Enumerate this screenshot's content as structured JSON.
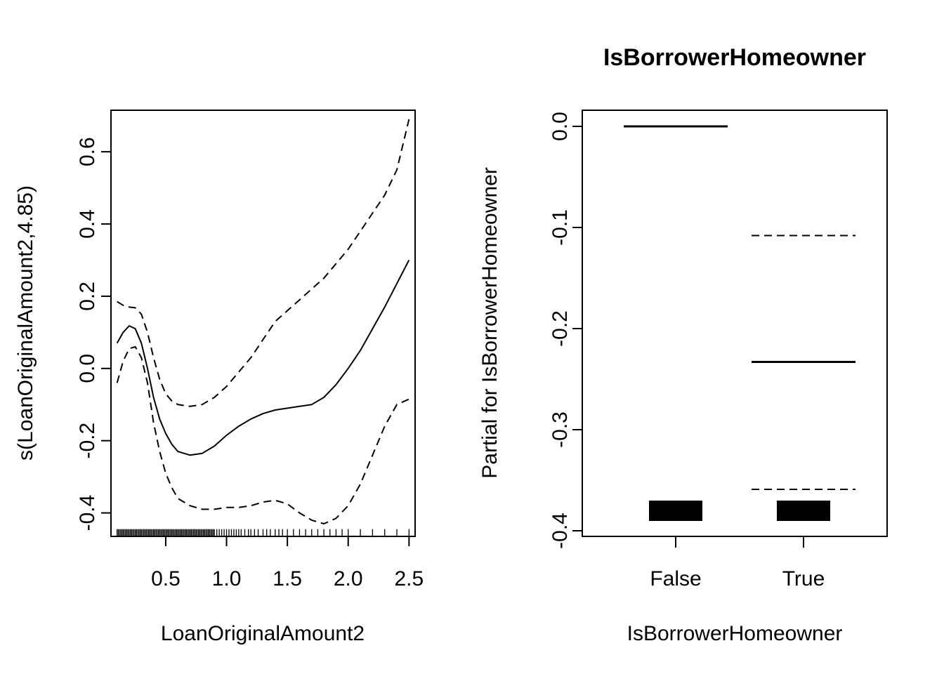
{
  "chart_data": [
    {
      "type": "line",
      "title": "",
      "xlabel": "LoanOriginalAmount2",
      "ylabel": "s(LoanOriginalAmount2,4.85)",
      "xlim": [
        0.05,
        2.55
      ],
      "ylim": [
        -0.465,
        0.715
      ],
      "xticks": [
        0.5,
        1.0,
        1.5,
        2.0,
        2.5
      ],
      "xtick_labels": [
        "0.5",
        "1.0",
        "1.5",
        "2.0",
        "2.5"
      ],
      "yticks": [
        -0.4,
        -0.2,
        0.0,
        0.2,
        0.4,
        0.6
      ],
      "ytick_labels": [
        "-0.4",
        "-0.2",
        "0.0",
        "0.2",
        "0.4",
        "0.6"
      ],
      "grid": false,
      "series": [
        {
          "style": "solid",
          "x": [
            0.1,
            0.15,
            0.2,
            0.25,
            0.3,
            0.35,
            0.4,
            0.45,
            0.5,
            0.55,
            0.6,
            0.7,
            0.8,
            0.9,
            1.0,
            1.1,
            1.2,
            1.3,
            1.4,
            1.5,
            1.6,
            1.7,
            1.8,
            1.9,
            2.0,
            2.1,
            2.2,
            2.3,
            2.4,
            2.5
          ],
          "y": [
            0.07,
            0.1,
            0.118,
            0.11,
            0.07,
            0.0,
            -0.08,
            -0.14,
            -0.18,
            -0.21,
            -0.23,
            -0.24,
            -0.235,
            -0.215,
            -0.185,
            -0.16,
            -0.14,
            -0.125,
            -0.115,
            -0.11,
            -0.105,
            -0.1,
            -0.08,
            -0.045,
            0.0,
            0.05,
            0.11,
            0.17,
            0.235,
            0.3
          ]
        },
        {
          "style": "dashed",
          "x": [
            0.1,
            0.15,
            0.2,
            0.25,
            0.3,
            0.35,
            0.4,
            0.45,
            0.5,
            0.55,
            0.6,
            0.7,
            0.8,
            0.9,
            1.0,
            1.1,
            1.2,
            1.3,
            1.4,
            1.5,
            1.6,
            1.7,
            1.8,
            1.9,
            2.0,
            2.1,
            2.2,
            2.3,
            2.4,
            2.5
          ],
          "y": [
            0.185,
            0.175,
            0.17,
            0.168,
            0.15,
            0.1,
            0.03,
            -0.03,
            -0.07,
            -0.09,
            -0.1,
            -0.105,
            -0.1,
            -0.08,
            -0.05,
            -0.01,
            0.03,
            0.08,
            0.13,
            0.16,
            0.19,
            0.22,
            0.25,
            0.29,
            0.33,
            0.38,
            0.43,
            0.48,
            0.55,
            0.69
          ]
        },
        {
          "style": "dashed",
          "x": [
            0.1,
            0.15,
            0.2,
            0.25,
            0.3,
            0.35,
            0.4,
            0.45,
            0.5,
            0.55,
            0.6,
            0.7,
            0.8,
            0.9,
            1.0,
            1.1,
            1.2,
            1.3,
            1.4,
            1.5,
            1.6,
            1.7,
            1.8,
            1.9,
            2.0,
            2.1,
            2.2,
            2.3,
            2.4,
            2.5
          ],
          "y": [
            -0.04,
            0.02,
            0.055,
            0.06,
            0.03,
            -0.04,
            -0.15,
            -0.23,
            -0.29,
            -0.33,
            -0.36,
            -0.38,
            -0.39,
            -0.39,
            -0.385,
            -0.385,
            -0.38,
            -0.37,
            -0.365,
            -0.375,
            -0.4,
            -0.42,
            -0.43,
            -0.415,
            -0.38,
            -0.32,
            -0.24,
            -0.16,
            -0.1,
            -0.085
          ]
        }
      ],
      "rug": [
        0.1,
        0.11,
        0.12,
        0.13,
        0.14,
        0.15,
        0.16,
        0.17,
        0.18,
        0.19,
        0.2,
        0.21,
        0.22,
        0.23,
        0.24,
        0.25,
        0.26,
        0.27,
        0.28,
        0.29,
        0.3,
        0.31,
        0.32,
        0.33,
        0.34,
        0.35,
        0.36,
        0.37,
        0.38,
        0.39,
        0.4,
        0.41,
        0.42,
        0.43,
        0.44,
        0.45,
        0.46,
        0.47,
        0.48,
        0.49,
        0.5,
        0.51,
        0.52,
        0.53,
        0.54,
        0.55,
        0.56,
        0.57,
        0.58,
        0.59,
        0.6,
        0.61,
        0.62,
        0.63,
        0.64,
        0.65,
        0.66,
        0.67,
        0.68,
        0.69,
        0.7,
        0.71,
        0.72,
        0.73,
        0.74,
        0.75,
        0.76,
        0.77,
        0.78,
        0.79,
        0.8,
        0.81,
        0.82,
        0.83,
        0.84,
        0.85,
        0.86,
        0.87,
        0.88,
        0.89,
        0.9,
        0.92,
        0.94,
        0.96,
        0.98,
        1.0,
        1.02,
        1.04,
        1.06,
        1.08,
        1.1,
        1.12,
        1.15,
        1.18,
        1.2,
        1.23,
        1.26,
        1.3,
        1.33,
        1.36,
        1.4,
        1.43,
        1.46,
        1.5,
        1.55,
        1.6,
        1.65,
        1.7,
        1.75,
        1.8,
        1.85,
        1.9,
        1.95,
        2.0,
        2.1,
        2.2,
        2.3,
        2.4,
        2.5
      ]
    },
    {
      "type": "bar",
      "title": "IsBorrowerHomeowner",
      "xlabel": "IsBorrowerHomeowner",
      "ylabel": "Partial for IsBorrowerHomeowner",
      "ylim": [
        -0.4,
        0.0
      ],
      "yticks": [
        -0.4,
        -0.3,
        -0.2,
        -0.1,
        0.0
      ],
      "ytick_labels": [
        "-0.4",
        "-0.3",
        "-0.2",
        "-0.1",
        "0.0"
      ],
      "categories": [
        "False",
        "True"
      ],
      "grid": false,
      "series": [
        {
          "name": "",
          "style": "solid",
          "values": [
            0.0,
            -0.233
          ]
        },
        {
          "name": "",
          "style": "dashed",
          "values": [
            null,
            -0.108
          ]
        },
        {
          "name": "",
          "style": "dashed",
          "values": [
            null,
            -0.359
          ]
        }
      ]
    }
  ]
}
